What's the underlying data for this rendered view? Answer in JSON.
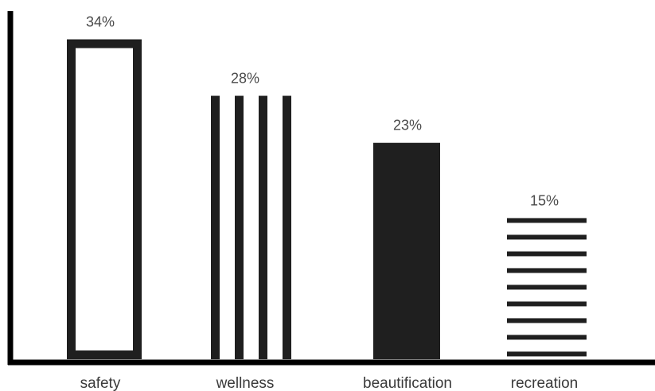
{
  "chart_data": {
    "type": "bar",
    "categories": [
      "safety",
      "wellness",
      "beautification",
      "recreation"
    ],
    "values": [
      34,
      28,
      23,
      15
    ],
    "value_labels": [
      "34%",
      "28%",
      "23%",
      "15%"
    ],
    "unit": "%",
    "fill_styles": [
      "outline",
      "vertical-stripes",
      "solid",
      "horizontal-stripes"
    ],
    "ylim": [
      0,
      37
    ],
    "grid": false,
    "legend": "none",
    "colors": {
      "bar": "#1f1f1f",
      "axis": "#000000",
      "value_text": "#4a4a4a",
      "category_text": "#3a3a3a"
    }
  }
}
